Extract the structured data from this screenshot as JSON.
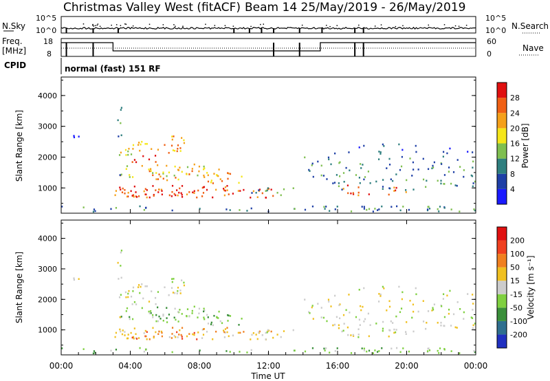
{
  "header": {
    "station": "Christmas Valley West (fitACF)",
    "beam_date": "Beam 14 25/May/2019 - 26/May/2019"
  },
  "strips": {
    "nsky_label": "N.Sky",
    "nsky_ticks": [
      "10^5",
      "10^0"
    ],
    "nsearch_label": "N.Search",
    "nsearch_ticks": [
      "10^5",
      "10^0"
    ],
    "freq_label": [
      "Freq.",
      "[MHz]"
    ],
    "freq_ticks": [
      "18",
      "8"
    ],
    "nave_label": "Nave",
    "nave_ticks": [
      "60",
      "0"
    ],
    "cpid_label": "CPID",
    "cpid_text": "normal (fast) 151 RF"
  },
  "chart_data": [
    {
      "type": "heatmap",
      "name": "power",
      "ylabel": "Slant Range [km]",
      "yticks": [
        "1000",
        "2000",
        "3000",
        "4000"
      ],
      "ylim": [
        180,
        4600
      ],
      "colorbar_label": "Power [dB]",
      "colorbar_ticks": [
        "4",
        "8",
        "12",
        "16",
        "20",
        "24",
        "28"
      ],
      "colors": [
        "#1a1aff",
        "#1e3fa6",
        "#2f7f7f",
        "#7fbf50",
        "#f5e61a",
        "#f5a01a",
        "#f06014",
        "#e01010"
      ],
      "xlim": [
        "00:00",
        "24:00"
      ]
    },
    {
      "type": "heatmap",
      "name": "velocity",
      "ylabel": "Slant Range [km]",
      "yticks": [
        "1000",
        "2000",
        "3000",
        "4000"
      ],
      "ylim": [
        180,
        4600
      ],
      "colorbar_label": "Velocity [m s⁻¹]",
      "colorbar_ticks": [
        "200",
        "100",
        "50",
        "15",
        "-15",
        "-50",
        "-100",
        "-200"
      ],
      "colors": [
        "#2030c0",
        "#2f6f8f",
        "#3a8f3a",
        "#7fd040",
        "#cccccc",
        "#f0c020",
        "#f08020",
        "#f04020",
        "#e01010"
      ],
      "xlim": [
        "00:00",
        "24:00"
      ]
    }
  ],
  "xaxis": {
    "ticks": [
      "00:00",
      "04:00",
      "08:00",
      "12:00",
      "16:00",
      "20:00",
      "00:00"
    ],
    "label": "Time UT"
  }
}
